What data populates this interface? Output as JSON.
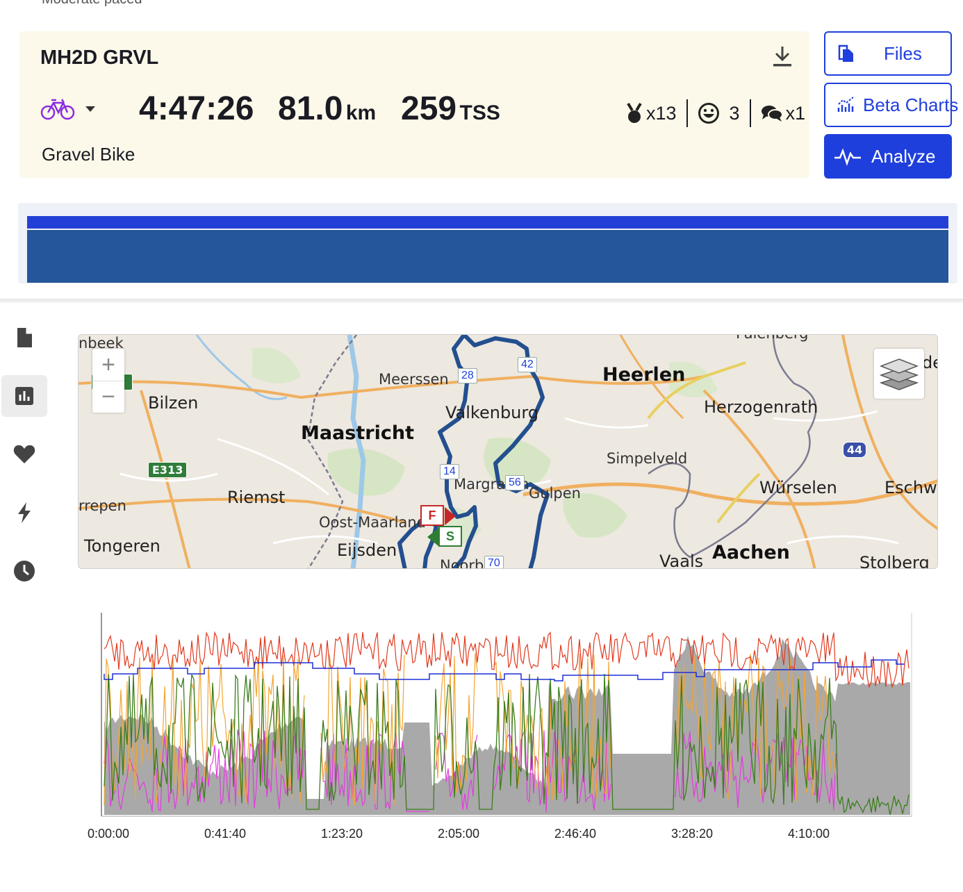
{
  "activity": {
    "title": "MH2D GRVL",
    "duration": "4:47:26",
    "distance_value": "81.0",
    "distance_unit": "km",
    "tss_value": "259",
    "tss_unit": "TSS",
    "type": "Gravel Bike",
    "medals": "x13",
    "kudos": "3",
    "comments": "x1"
  },
  "actions": {
    "files": "Files",
    "beta_charts": "Beta Charts",
    "analyze": "Analyze"
  },
  "colors": {
    "accent": "#1f3fdc",
    "summary_bg": "#fcf9ea",
    "route": "#234f8f",
    "heart_rate": "#e03a1e",
    "speed": "#1f2ed6",
    "power": "#f2a532",
    "cadence": "#3b7d1c",
    "pink": "#e33be0",
    "elevation": "#9a9a9a"
  },
  "sidebar": [
    "file-icon",
    "chart-icon",
    "heart-icon",
    "bolt-icon",
    "clock-icon"
  ],
  "map": {
    "labels": {
      "beek": "nbeek",
      "meerssen": "Meerssen",
      "heerlen": "Heerlen",
      "bilzen": "Bilzen",
      "valkenburg": "Valkenburg",
      "herzogenrath": "Herzogenrath",
      "maastricht": "Maastricht",
      "simpelveld": "Simpelveld",
      "margraten": "Margraten",
      "gulpen": "Gulpen",
      "wurselen": "Würselen",
      "eschweiler": "Eschw",
      "riemst": "Riemst",
      "lerepen": "rrepen",
      "oost": "Oost-Maarland",
      "tongeren": "Tongeren",
      "eijsden": "Eijsden",
      "noorbeek": "Noorb",
      "vaals": "Vaals",
      "aachen": "Aachen",
      "stolberg": "Stolberg",
      "landgraaf": "Palenberg",
      "de": "de"
    },
    "shields": {
      "e313": "E313",
      "a44": "44"
    },
    "nodes": [
      "28",
      "42",
      "14",
      "56",
      "70"
    ],
    "finish": "F",
    "start": "S",
    "zoom_in": "+",
    "zoom_out": "−"
  },
  "chart": {
    "x_ticks": [
      "0:00:00",
      "0:41:40",
      "1:23:20",
      "2:05:00",
      "2:46:40",
      "3:28:20",
      "4:10:00"
    ]
  }
}
